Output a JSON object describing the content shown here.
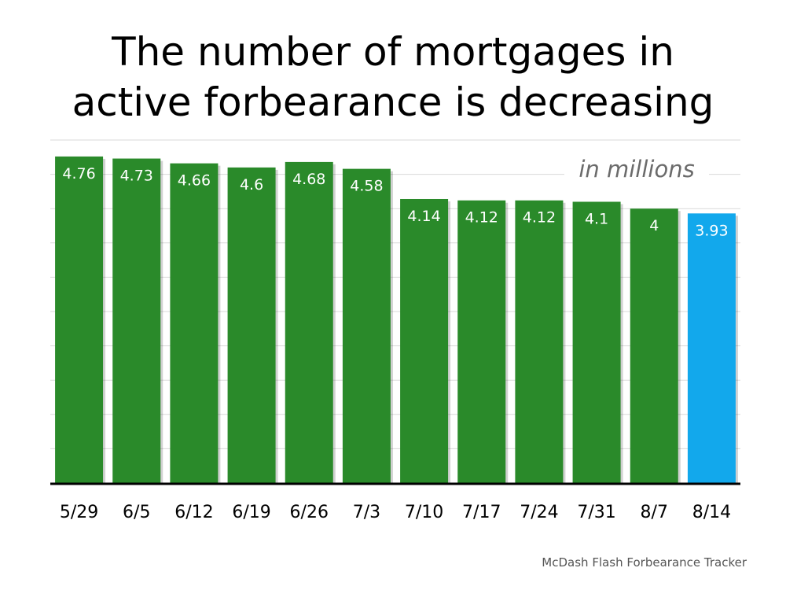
{
  "title_line1": "The number of mortgages in",
  "title_line2": "active forbearance is decreasing",
  "source": "McDash Flash Forbearance Tracker",
  "colors": {
    "bar": "#2a8a2a",
    "highlight_bar": "#12a8ec",
    "grid": "#d9d9d9",
    "axis": "#000000",
    "annotation": "#6b6b6b"
  },
  "chart_data": {
    "type": "bar",
    "title": "The number of mortgages in active forbearance is decreasing",
    "annotation": "in millions",
    "categories": [
      "5/29",
      "6/5",
      "6/12",
      "6/19",
      "6/26",
      "7/3",
      "7/10",
      "7/17",
      "7/24",
      "7/31",
      "8/7",
      "8/14"
    ],
    "values": [
      4.76,
      4.73,
      4.66,
      4.6,
      4.68,
      4.58,
      4.14,
      4.12,
      4.12,
      4.1,
      4,
      3.93
    ],
    "data_labels": [
      "4.76",
      "4.73",
      "4.66",
      "4.6",
      "4.68",
      "4.58",
      "4.14",
      "4.12",
      "4.12",
      "4.1",
      "4",
      "3.93"
    ],
    "highlight_index": 11,
    "ylim": [
      0,
      5
    ],
    "grid": true,
    "y_tick_labels_shown": false
  }
}
